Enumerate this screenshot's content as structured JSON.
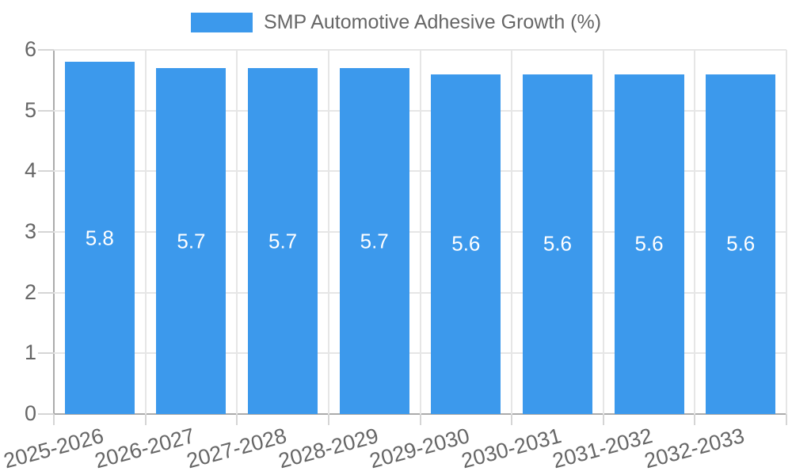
{
  "chart_data": {
    "type": "bar",
    "title": "SMP Automotive Adhesive Growth (%)",
    "categories": [
      "2025-2026",
      "2026-2027",
      "2027-2028",
      "2028-2029",
      "2029-2030",
      "2030-2031",
      "2031-2032",
      "2032-2033"
    ],
    "values": [
      5.8,
      5.7,
      5.7,
      5.7,
      5.6,
      5.6,
      5.6,
      5.6
    ],
    "bar_labels": [
      "5.8",
      "5.7",
      "5.7",
      "5.7",
      "5.6",
      "5.6",
      "5.6",
      "5.6"
    ],
    "xlabel": "",
    "ylabel": "",
    "ylim": [
      0,
      6
    ],
    "yticks": [
      0,
      1,
      2,
      3,
      4,
      5,
      6
    ],
    "grid": true,
    "legend_position": "top"
  },
  "legend": {
    "label": "SMP Automotive Adhesive Growth (%)"
  },
  "colors": {
    "bar": "#3C99EC",
    "grid": "#e6e6e6",
    "axis": "#ababab",
    "tick": "#d5d5d5",
    "tick_text": "#666666",
    "value_text": "#ffffff",
    "background": "#ffffff"
  }
}
